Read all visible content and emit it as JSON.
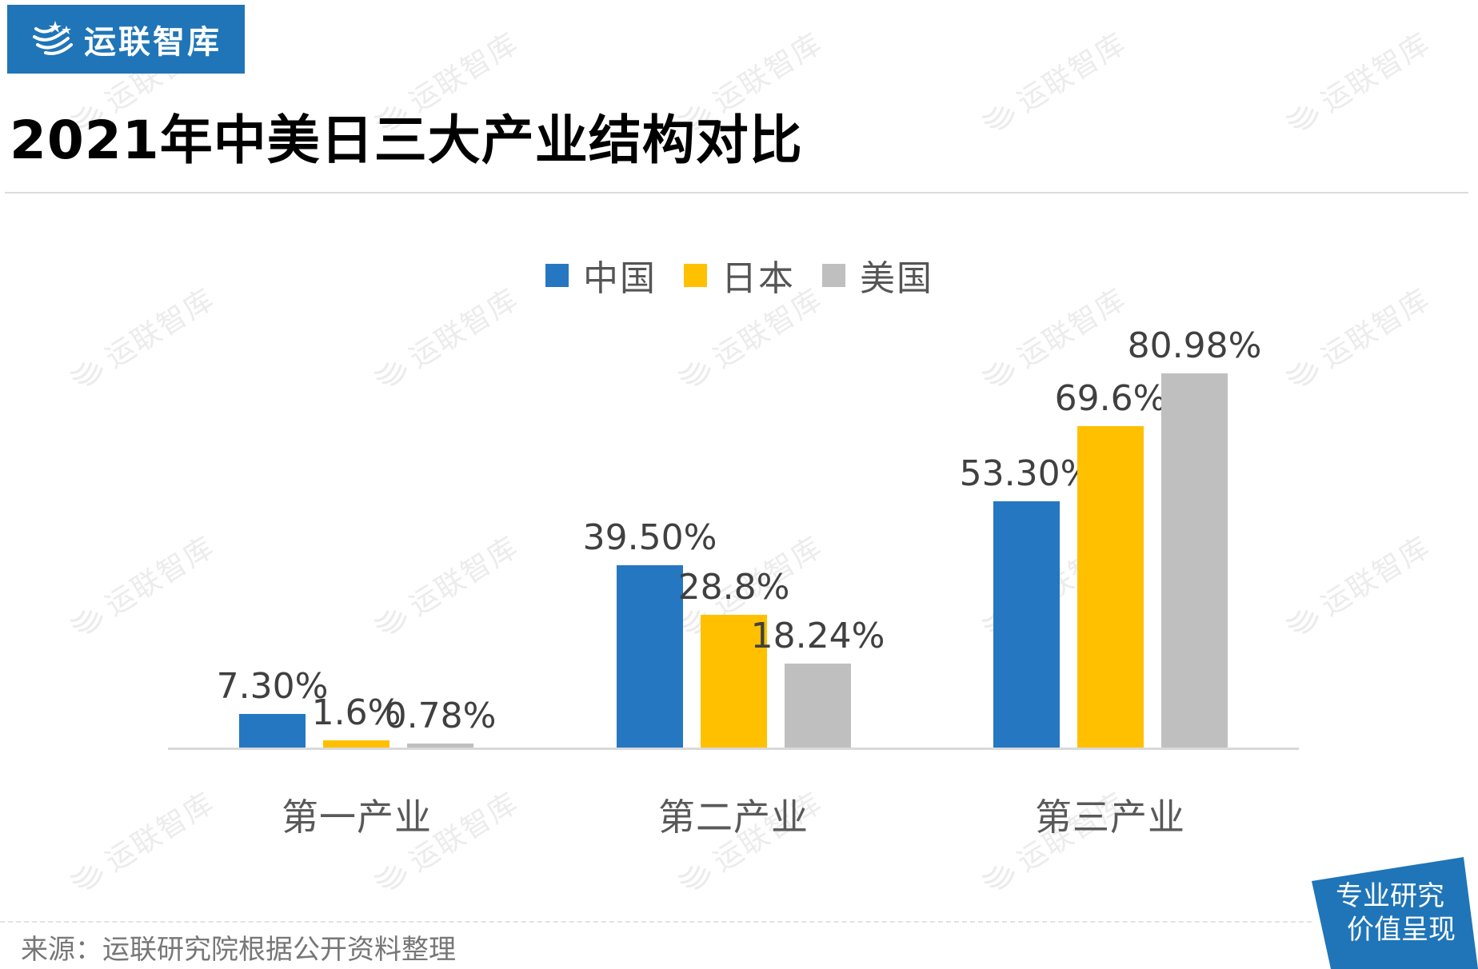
{
  "brand": {
    "logo_text": "运联智库",
    "logo_bg": "#1f75b8",
    "watermark_text": "运联智库"
  },
  "header": {
    "title": "2021年中美日三大产业结构对比"
  },
  "legend": {
    "items": [
      {
        "label": "中国",
        "color": "#2577c1"
      },
      {
        "label": "日本",
        "color": "#ffc000"
      },
      {
        "label": "美国",
        "color": "#bfbfbf"
      }
    ]
  },
  "chart_data": {
    "type": "bar",
    "title": "2021年中美日三大产业结构对比",
    "xlabel": "",
    "ylabel": "",
    "categories": [
      "第一产业",
      "第二产业",
      "第三产业"
    ],
    "series": [
      {
        "name": "中国",
        "color": "#2577c1",
        "values": [
          7.3,
          39.5,
          53.3
        ],
        "labels": [
          "7.30%",
          "39.50%",
          "53.30%"
        ]
      },
      {
        "name": "日本",
        "color": "#ffc000",
        "values": [
          1.6,
          28.8,
          69.6
        ],
        "labels": [
          "1.6%",
          "28.8%",
          "69.6%"
        ]
      },
      {
        "name": "美国",
        "color": "#bfbfbf",
        "values": [
          0.78,
          18.24,
          80.98
        ],
        "labels": [
          "0.78%",
          "18.24%",
          "80.98%"
        ]
      }
    ],
    "ylim": [
      0,
      90
    ],
    "grid": false,
    "y_axis_visible": false,
    "legend_position": "top",
    "data_labels": true
  },
  "footer": {
    "source": "来源：运联研究院根据公开资料整理",
    "badge_line1": "专业研究",
    "badge_line2": "价值呈现",
    "badge_color": "#1f75b8"
  }
}
